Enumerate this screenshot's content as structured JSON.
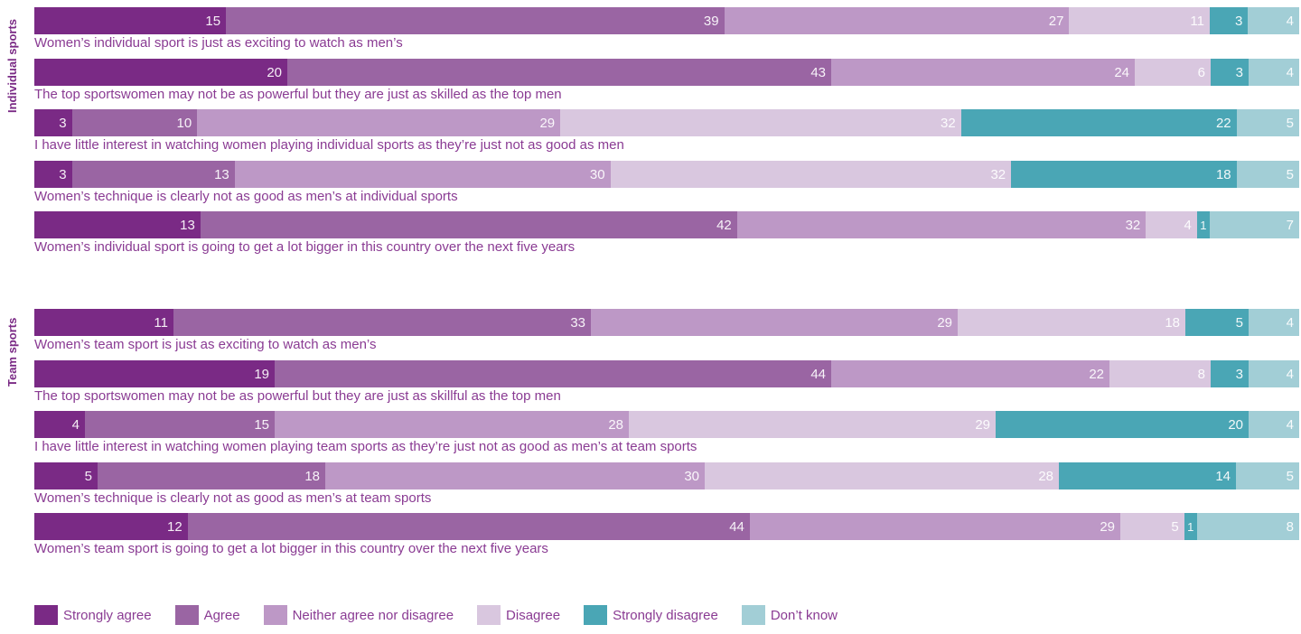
{
  "chart_data": {
    "type": "bar",
    "orientation": "horizontal-stacked",
    "categories": [
      "Strongly agree",
      "Agree",
      "Neither agree nor disagree",
      "Disagree",
      "Strongly disagree",
      "Don’t know"
    ],
    "colors": [
      "#7a2a85",
      "#9a65a3",
      "#bd98c6",
      "#d9c7df",
      "#4aa6b5",
      "#a2ced6"
    ],
    "legend_position": "bottom",
    "groups": [
      {
        "label": "Individual sports",
        "rows": [
          {
            "label": "Women’s individual sport is just as exciting to watch as men’s",
            "values": [
              15,
              39,
              27,
              11,
              3,
              4
            ]
          },
          {
            "label": "The top sportswomen may not be as powerful but they are just as skilled as the top men",
            "values": [
              20,
              43,
              24,
              6,
              3,
              4
            ]
          },
          {
            "label": "I have little interest in watching women playing individual sports as they’re just not as good as men",
            "values": [
              3,
              10,
              29,
              32,
              22,
              5
            ]
          },
          {
            "label": "Women’s technique is clearly not as good as men’s at individual sports",
            "values": [
              3,
              13,
              30,
              32,
              18,
              5
            ]
          },
          {
            "label": "Women’s individual sport is going to get a lot bigger in this country over the next five years",
            "values": [
              13,
              42,
              32,
              4,
              1,
              7
            ]
          }
        ]
      },
      {
        "label": "Team sports",
        "rows": [
          {
            "label": "Women’s team sport is just as exciting to watch as men’s",
            "values": [
              11,
              33,
              29,
              18,
              5,
              4
            ]
          },
          {
            "label": "The top sportswomen may not be as powerful but they are just as skillful as the top men",
            "values": [
              19,
              44,
              22,
              8,
              3,
              4
            ]
          },
          {
            "label": "I have little interest in watching women playing team sports as they’re just not as good as men’s at team sports",
            "values": [
              4,
              15,
              28,
              29,
              20,
              4
            ]
          },
          {
            "label": "Women’s technique is clearly not as good as men’s at team sports",
            "values": [
              5,
              18,
              30,
              28,
              14,
              5
            ]
          },
          {
            "label": "Women’s team sport is going to get a lot bigger in this country over the next five years",
            "values": [
              12,
              44,
              29,
              5,
              1,
              8
            ]
          }
        ]
      }
    ]
  }
}
